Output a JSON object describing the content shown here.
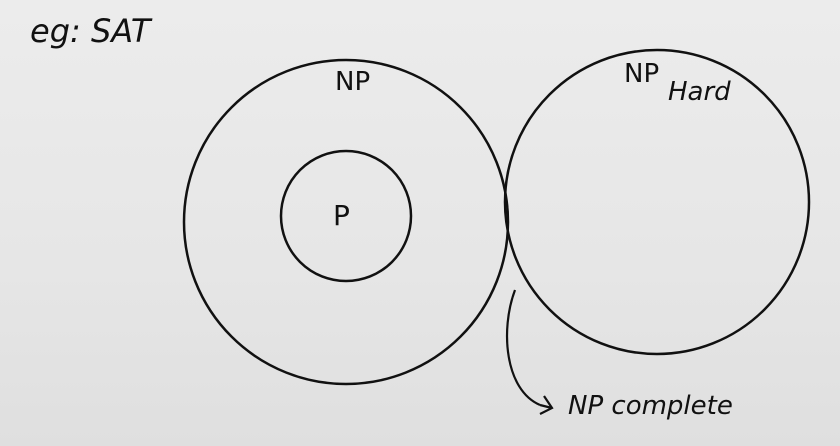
{
  "labels": {
    "example": "eg: SAT",
    "np": "NP",
    "p": "P",
    "np_hard_main": "NP",
    "np_hard_sub": "Hard",
    "np_complete": "NP complete"
  },
  "colors": {
    "ink": "#111111",
    "background": "#e9e9e9"
  }
}
